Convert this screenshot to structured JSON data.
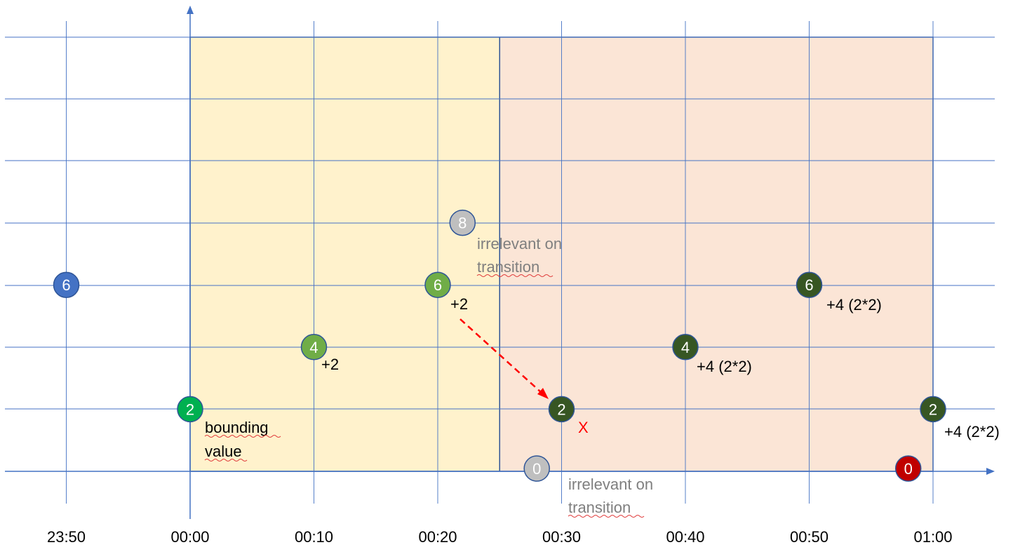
{
  "chart_data": {
    "type": "scatter",
    "x_ticks": [
      "23:50",
      "00:00",
      "00:10",
      "00:20",
      "00:30",
      "00:40",
      "00:50",
      "01:00"
    ],
    "points": [
      {
        "time": "23:50",
        "value": 6,
        "label": "6",
        "color": "#4472c4"
      },
      {
        "time": "00:00",
        "value": 2,
        "label": "2",
        "color": "#00b050"
      },
      {
        "time": "00:10",
        "value": 4,
        "label": "4",
        "color": "#70ad47"
      },
      {
        "time": "00:20",
        "value": 6,
        "label": "6",
        "color": "#70ad47"
      },
      {
        "time": "00:22",
        "value": 8,
        "label": "8",
        "color": "#bfbfbf"
      },
      {
        "time": "00:28",
        "value": 0,
        "label": "0",
        "color": "#bfbfbf"
      },
      {
        "time": "00:30",
        "value": 2,
        "label": "2",
        "color": "#375623"
      },
      {
        "time": "00:40",
        "value": 4,
        "label": "4",
        "color": "#375623"
      },
      {
        "time": "00:50",
        "value": 6,
        "label": "6",
        "color": "#375623"
      },
      {
        "time": "01:00",
        "value": 2,
        "label": "2",
        "color": "#375623"
      },
      {
        "time": "00:58",
        "value": 0,
        "label": "0",
        "color": "#c00000"
      }
    ],
    "regions": [
      {
        "from": "00:00",
        "to": "00:25",
        "color": "#fff2cc"
      },
      {
        "from": "00:25",
        "to": "01:00",
        "color": "#fbe5d6"
      }
    ],
    "annotations": {
      "bounding": [
        "bounding",
        "value"
      ],
      "irrelevant_upper": [
        "irrelevant on",
        "transition"
      ],
      "irrelevant_lower": [
        "irrelevant on",
        "transition"
      ],
      "plus2_a": "+2",
      "plus2_b": "+2",
      "plus4_a": "+4 (2*2)",
      "plus4_b": "+4 (2*2)",
      "plus4_c": "+4 (2*2)",
      "x_mark": "X"
    },
    "grid": true,
    "colors": {
      "grid": "#4472c4",
      "axis": "#4472c4",
      "arrow": "#ff0000"
    }
  }
}
